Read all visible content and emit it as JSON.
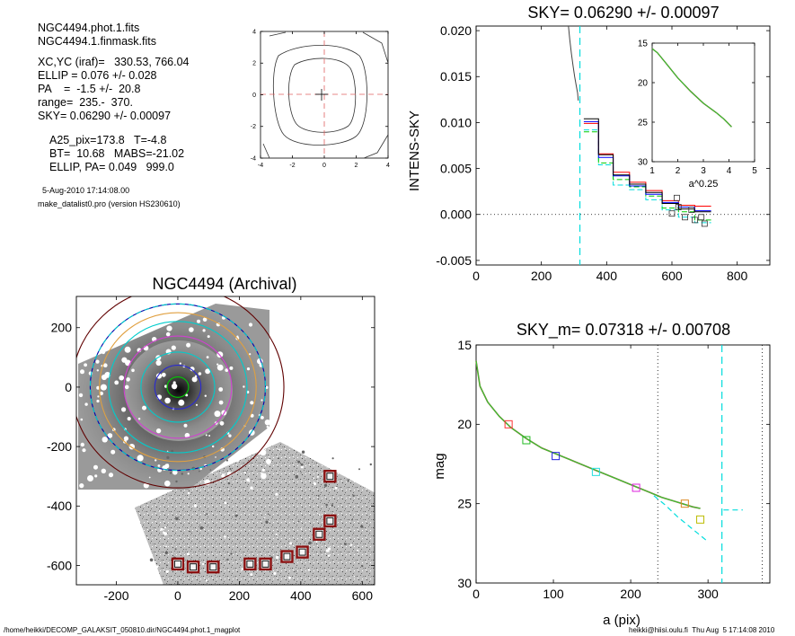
{
  "info": {
    "lines1": [
      "NGC4494.phot.1.fits",
      "NGC4494.1.finmask.fits"
    ],
    "lines2": [
      "XC,YC (iraf)=   330.53, 766.04",
      "ELLIP = 0.076 +/- 0.028",
      "PA    =  -1.5 +/-  20.8",
      "range=  235.-  370.",
      "SKY= 0.06290 +/- 0.00097"
    ],
    "lines3": [
      "A25_pix=173.8   T=-4.8",
      "BT=  10.68   MABS=-21.02",
      "ELLIP, PA= 0.049   999.0"
    ],
    "date": "5-Aug-2010 17:14:08.00",
    "program": "make_datalist0.pro (version HS230610)"
  },
  "footer": {
    "left": "/home/heikki/DECOMP_GALAKSIT_050810.dir/NGC4494.phot.1_magplot",
    "right": "heikki@hiisi.oulu.fi  Thu Aug  5 17:14:08 2010"
  },
  "chart_data": [
    {
      "id": "contour",
      "type": "contour",
      "xlim": [
        -4,
        4
      ],
      "ylim": [
        -4,
        4
      ],
      "xticks": [
        "-4",
        "-2",
        "0",
        "2",
        "4"
      ],
      "yticks": [
        "-4",
        "-2",
        "0",
        "2",
        "4"
      ],
      "crosshair_color": "#e06060"
    },
    {
      "id": "sky",
      "type": "line",
      "title": "SKY= 0.06290 +/- 0.00097",
      "ylabel": "INTENS-SKY",
      "xlim": [
        0,
        900
      ],
      "ylim": [
        -0.0055,
        0.0205
      ],
      "xticks": [
        "0",
        "200",
        "400",
        "600",
        "800"
      ],
      "yticks": [
        "-0.005",
        "0.000",
        "0.005",
        "0.010",
        "0.015",
        "0.020"
      ],
      "sky_line_x": 318,
      "colors": {
        "mean": "#000000",
        "blue": "#0000ff",
        "red": "#ff0000",
        "green": "#00cc00",
        "cyan": "#00dddd"
      },
      "inner_curve": [
        [
          283,
          0.0205
        ],
        [
          287,
          0.019
        ],
        [
          292,
          0.0175
        ],
        [
          297,
          0.0162
        ],
        [
          302,
          0.015
        ],
        [
          307,
          0.014
        ],
        [
          311,
          0.0132
        ],
        [
          313,
          0.0124
        ]
      ],
      "step_edges": [
        330,
        375,
        420,
        470,
        520,
        570,
        620,
        670,
        720
      ],
      "step_levels": {
        "black": [
          0.0104,
          0.0065,
          0.0043,
          0.0033,
          0.0024,
          0.0012,
          0.0006,
          0.0003
        ],
        "blue": [
          0.0101,
          0.0062,
          0.0042,
          0.0031,
          0.0022,
          0.0013,
          0.0008,
          0.0004
        ],
        "red": [
          0.0099,
          0.0066,
          0.0046,
          0.0035,
          0.0026,
          0.0015,
          0.001,
          0.0009
        ],
        "green": [
          0.009,
          0.0056,
          0.0038,
          0.003,
          0.002,
          0.0007,
          0.0003,
          -0.0006
        ],
        "cyan": [
          0.0092,
          0.0054,
          0.0032,
          0.0027,
          0.0016,
          0.0005,
          -0.0003,
          -0.0009
        ]
      },
      "points": [
        [
          615,
          0.0018
        ],
        [
          600,
          0.0001
        ],
        [
          620,
          0.0008
        ],
        [
          640,
          -0.0003
        ],
        [
          660,
          0.0005
        ],
        [
          670,
          -0.0006
        ],
        [
          690,
          -0.0003
        ],
        [
          700,
          -0.001
        ]
      ],
      "inset": {
        "xlabel": "a^0.25",
        "xlim": [
          1,
          5
        ],
        "ylim": [
          30,
          15
        ],
        "xticks": [
          "1",
          "2",
          "3",
          "4",
          "5"
        ],
        "yticks": [
          "15",
          "20",
          "25",
          "30"
        ],
        "curve": [
          [
            1.0,
            15.7
          ],
          [
            1.2,
            16.2
          ],
          [
            1.5,
            17.4
          ],
          [
            2.0,
            19.4
          ],
          [
            2.5,
            21.1
          ],
          [
            3.0,
            22.6
          ],
          [
            3.5,
            23.8
          ],
          [
            3.8,
            24.6
          ],
          [
            4.1,
            25.6
          ]
        ]
      }
    },
    {
      "id": "image",
      "type": "image",
      "title": "NGC4494 (Archival)",
      "xlim": [
        -330,
        640
      ],
      "ylim": [
        -665,
        305
      ],
      "xticks": [
        "-200",
        "0",
        "200",
        "400",
        "600"
      ],
      "yticks": [
        "-600",
        "-400",
        "-200",
        "0",
        "200"
      ],
      "ellipses": [
        {
          "a": 35,
          "color": "#00cc00"
        },
        {
          "a": 75,
          "color": "#2a2ad0"
        },
        {
          "a": 120,
          "color": "#00cccc"
        },
        {
          "a": 175,
          "color": "#d040d0"
        },
        {
          "a": 225,
          "color": "#00cccc"
        },
        {
          "a": 255,
          "color": "#e0a040"
        },
        {
          "a": 285,
          "color": "#0000aa"
        },
        {
          "a": 345,
          "color": "#600000"
        }
      ],
      "marked_boxes": [
        [
          0,
          -595
        ],
        [
          50,
          -605
        ],
        [
          115,
          -605
        ],
        [
          235,
          -595
        ],
        [
          285,
          -595
        ],
        [
          355,
          -570
        ],
        [
          405,
          -555
        ],
        [
          460,
          -495
        ],
        [
          495,
          -450
        ],
        [
          495,
          -300
        ]
      ]
    },
    {
      "id": "mag",
      "type": "line",
      "title": "SKY_m=  0.07318 +/- 0.00708",
      "xlabel": "a (pix)",
      "ylabel": "mag",
      "xlim": [
        0,
        380
      ],
      "ylim": [
        30,
        15
      ],
      "xticks": [
        "0",
        "100",
        "200",
        "300"
      ],
      "yticks": [
        "15",
        "20",
        "25",
        "30"
      ],
      "vlines_dotted": [
        235,
        370
      ],
      "vline_cyan": 318,
      "profile": [
        [
          0,
          16.0
        ],
        [
          5,
          17.6
        ],
        [
          15,
          18.6
        ],
        [
          30,
          19.5
        ],
        [
          45,
          20.2
        ],
        [
          65,
          20.9
        ],
        [
          85,
          21.5
        ],
        [
          105,
          21.9
        ],
        [
          130,
          22.4
        ],
        [
          155,
          22.9
        ],
        [
          180,
          23.4
        ],
        [
          205,
          23.9
        ],
        [
          225,
          24.3
        ],
        [
          240,
          24.6
        ],
        [
          260,
          24.9
        ],
        [
          280,
          25.2
        ],
        [
          290,
          25.3
        ]
      ],
      "cyan_tail": [
        [
          230,
          24.5
        ],
        [
          245,
          25.1
        ],
        [
          260,
          25.8
        ],
        [
          275,
          26.4
        ],
        [
          290,
          27.0
        ],
        [
          300,
          27.4
        ]
      ],
      "cyan_seg": [
        [
          320,
          25.4
        ],
        [
          345,
          25.4
        ]
      ],
      "boxes": [
        {
          "x": 42,
          "y": 20.0,
          "color": "#ff3333"
        },
        {
          "x": 65,
          "y": 21.0,
          "color": "#22bb22"
        },
        {
          "x": 103,
          "y": 22.0,
          "color": "#2222dd"
        },
        {
          "x": 155,
          "y": 23.0,
          "color": "#22dddd"
        },
        {
          "x": 207,
          "y": 24.0,
          "color": "#dd22dd"
        },
        {
          "x": 270,
          "y": 25.0,
          "color": "#dd8822"
        },
        {
          "x": 290,
          "y": 26.0,
          "color": "#bbbb00"
        }
      ]
    }
  ]
}
